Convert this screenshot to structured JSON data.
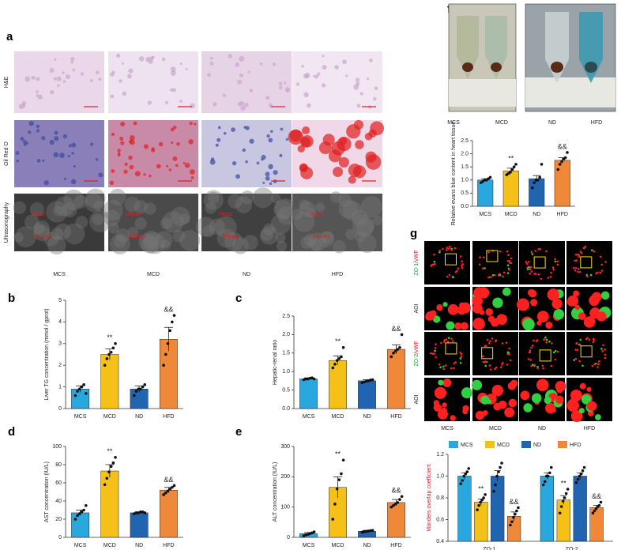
{
  "figure": {
    "panel_a": "a",
    "image_rows": [
      "H&E",
      "Oil Red O",
      "Ultrasonography"
    ],
    "image_columns": [
      "MCS",
      "MCD",
      "ND",
      "HFD"
    ],
    "ultrasound_labels": [
      [
        "Heart",
        "Kidney"
      ],
      [
        "Hepar",
        "Kidney"
      ],
      [
        "Heart",
        "Kidney"
      ],
      [
        "Heart",
        "Kidney"
      ]
    ],
    "panel_f": "f",
    "photo_columns": [
      "MCS",
      "MCD",
      "ND",
      "HFD"
    ],
    "panel_g": "g",
    "g_rows": [
      [
        "ZO-1",
        "/vWF"
      ],
      [
        "AOI"
      ],
      [
        "ZO-2",
        "/vWF"
      ],
      [
        "AOI"
      ]
    ],
    "g_columns": [
      "MCS",
      "MCD",
      "ND",
      "HFD"
    ]
  },
  "chart_data": [
    {
      "type": "bar",
      "panel": "b",
      "ylabel": "Liver TG concentration (mmol / gprot)",
      "categories": [
        "MCS",
        "MCD",
        "ND",
        "HFD"
      ],
      "colors": [
        "#29a8e0",
        "#f5c018",
        "#2165b0",
        "#f0883a"
      ],
      "values": [
        0.9,
        2.5,
        0.9,
        3.2
      ],
      "errors": [
        0.15,
        0.25,
        0.15,
        0.55
      ],
      "points": [
        [
          0.6,
          0.8,
          0.9,
          1.0,
          1.1,
          0.7
        ],
        [
          2.0,
          2.3,
          2.5,
          2.6,
          2.8,
          3.0
        ],
        [
          0.6,
          0.8,
          0.9,
          0.9,
          1.0,
          1.1
        ],
        [
          2.0,
          2.5,
          3.0,
          3.6,
          4.0,
          4.3
        ]
      ],
      "annotations": [
        null,
        "**",
        null,
        "&&"
      ],
      "ylim": [
        0,
        5
      ],
      "yticks": [
        0,
        1,
        2,
        3,
        4,
        5
      ]
    },
    {
      "type": "bar",
      "panel": "c",
      "ylabel": "Hepatic-renal ratio",
      "categories": [
        "MCS",
        "MCD",
        "ND",
        "HFD"
      ],
      "colors": [
        "#29a8e0",
        "#f5c018",
        "#2165b0",
        "#f0883a"
      ],
      "values": [
        0.8,
        1.3,
        0.75,
        1.6
      ],
      "errors": [
        0.03,
        0.12,
        0.03,
        0.12
      ],
      "points": [
        [
          0.78,
          0.8,
          0.8,
          0.82,
          0.83,
          0.8
        ],
        [
          1.1,
          1.2,
          1.3,
          1.35,
          1.4,
          1.65
        ],
        [
          0.7,
          0.72,
          0.74,
          0.75,
          0.77,
          0.78
        ],
        [
          1.4,
          1.5,
          1.55,
          1.6,
          1.65,
          2.0
        ]
      ],
      "annotations": [
        null,
        "**",
        null,
        "&&"
      ],
      "ylim": [
        0,
        2.5
      ],
      "yticks": [
        {
          "value": 0,
          "label": "0.0"
        },
        0.5,
        {
          "value": 1,
          "label": "1.0"
        },
        1.5,
        {
          "value": 2,
          "label": "2.0"
        },
        2.5
      ]
    },
    {
      "type": "bar",
      "panel": "d",
      "ylabel": "AST concentration (IU/L)",
      "categories": [
        "MCS",
        "MCD",
        "ND",
        "HFD"
      ],
      "colors": [
        "#29a8e0",
        "#f5c018",
        "#2165b0",
        "#f0883a"
      ],
      "values": [
        27,
        73,
        27,
        52
      ],
      "errors": [
        3,
        7,
        1,
        3
      ],
      "points": [
        [
          20,
          24,
          26,
          28,
          30,
          35
        ],
        [
          58,
          65,
          72,
          78,
          82,
          88
        ],
        [
          26,
          27,
          27,
          28,
          28,
          27
        ],
        [
          47,
          49,
          51,
          53,
          55,
          57
        ]
      ],
      "annotations": [
        null,
        "**",
        null,
        "&&"
      ],
      "ylim": [
        0,
        100
      ],
      "yticks": [
        0,
        20,
        40,
        60,
        80,
        100
      ]
    },
    {
      "type": "bar",
      "panel": "e",
      "ylabel": "ALT concentration (IU/L)",
      "categories": [
        "MCS",
        "MCD",
        "ND",
        "HFD"
      ],
      "colors": [
        "#29a8e0",
        "#f5c018",
        "#2165b0",
        "#f0883a"
      ],
      "values": [
        12,
        165,
        20,
        115
      ],
      "errors": [
        4,
        35,
        3,
        10
      ],
      "points": [
        [
          5,
          8,
          10,
          12,
          15,
          18
        ],
        [
          60,
          110,
          160,
          190,
          210,
          255
        ],
        [
          17,
          18,
          20,
          21,
          22,
          23
        ],
        [
          100,
          105,
          110,
          115,
          125,
          135
        ]
      ],
      "annotations": [
        null,
        "**",
        null,
        "&&"
      ],
      "ylim": [
        0,
        300
      ],
      "yticks": [
        0,
        100,
        200,
        300
      ]
    },
    {
      "type": "bar",
      "ylabel": "Relative evans blue content in heart tissue",
      "categories": [
        "MCS",
        "MCD",
        "ND",
        "HFD"
      ],
      "colors": [
        "#29a8e0",
        "#f5c018",
        "#2165b0",
        "#f0883a"
      ],
      "values": [
        1.0,
        1.35,
        1.05,
        1.75
      ],
      "errors": [
        0.05,
        0.1,
        0.12,
        0.1
      ],
      "points": [
        [
          0.9,
          0.95,
          1.0,
          1.0,
          1.05,
          1.1
        ],
        [
          1.2,
          1.25,
          1.3,
          1.4,
          1.5,
          1.6
        ],
        [
          0.7,
          0.9,
          1.0,
          1.0,
          1.1,
          1.6
        ],
        [
          1.4,
          1.6,
          1.7,
          1.8,
          1.85,
          2.05
        ]
      ],
      "annotations": [
        null,
        "**",
        null,
        "&&"
      ],
      "ylim": [
        0,
        2.5
      ],
      "yticks": [
        {
          "value": 0,
          "label": "0.0"
        },
        0.5,
        {
          "value": 1,
          "label": "1.0"
        },
        1.5,
        {
          "value": 2,
          "label": "2.0"
        },
        2.5
      ]
    },
    {
      "type": "grouped_bar",
      "ylabel": "Manders overlap coefficient",
      "categories": [
        "ZO-1",
        "ZO-2"
      ],
      "series": [
        {
          "name": "MCS",
          "color": "#29a8e0",
          "values": [
            1.0,
            1.0
          ],
          "errors": [
            0.03,
            0.03
          ],
          "annotations": [
            null,
            null
          ],
          "points": [
            [
              0.93,
              0.96,
              1.0,
              1.02,
              1.04,
              1.07
            ],
            [
              0.92,
              0.95,
              1.0,
              1.0,
              1.03,
              1.08
            ]
          ]
        },
        {
          "name": "MCD",
          "color": "#f5c018",
          "values": [
            0.76,
            0.78
          ],
          "errors": [
            0.03,
            0.04
          ],
          "annotations": [
            "**",
            "**"
          ],
          "points": [
            [
              0.69,
              0.73,
              0.76,
              0.78,
              0.8,
              0.83
            ],
            [
              0.66,
              0.72,
              0.77,
              0.8,
              0.84,
              0.88
            ]
          ]
        },
        {
          "name": "ND",
          "color": "#2165b0",
          "values": [
            1.0,
            1.0
          ],
          "errors": [
            0.05,
            0.03
          ],
          "annotations": [
            null,
            null
          ],
          "points": [
            [
              0.86,
              0.92,
              1.0,
              1.04,
              1.08,
              1.12
            ],
            [
              0.94,
              0.97,
              1.0,
              1.02,
              1.05,
              1.08
            ]
          ]
        },
        {
          "name": "HFD",
          "color": "#f0883a",
          "values": [
            0.63,
            0.71
          ],
          "errors": [
            0.04,
            0.02
          ],
          "annotations": [
            "&&",
            "&&"
          ],
          "points": [
            [
              0.55,
              0.58,
              0.62,
              0.65,
              0.68,
              0.71
            ],
            [
              0.66,
              0.68,
              0.7,
              0.72,
              0.73,
              0.76
            ]
          ]
        }
      ],
      "ylim": [
        0.4,
        1.2
      ],
      "yticks": [
        0.4,
        0.6,
        0.8,
        {
          "value": 1,
          "label": "1.0"
        },
        1.2
      ]
    }
  ]
}
